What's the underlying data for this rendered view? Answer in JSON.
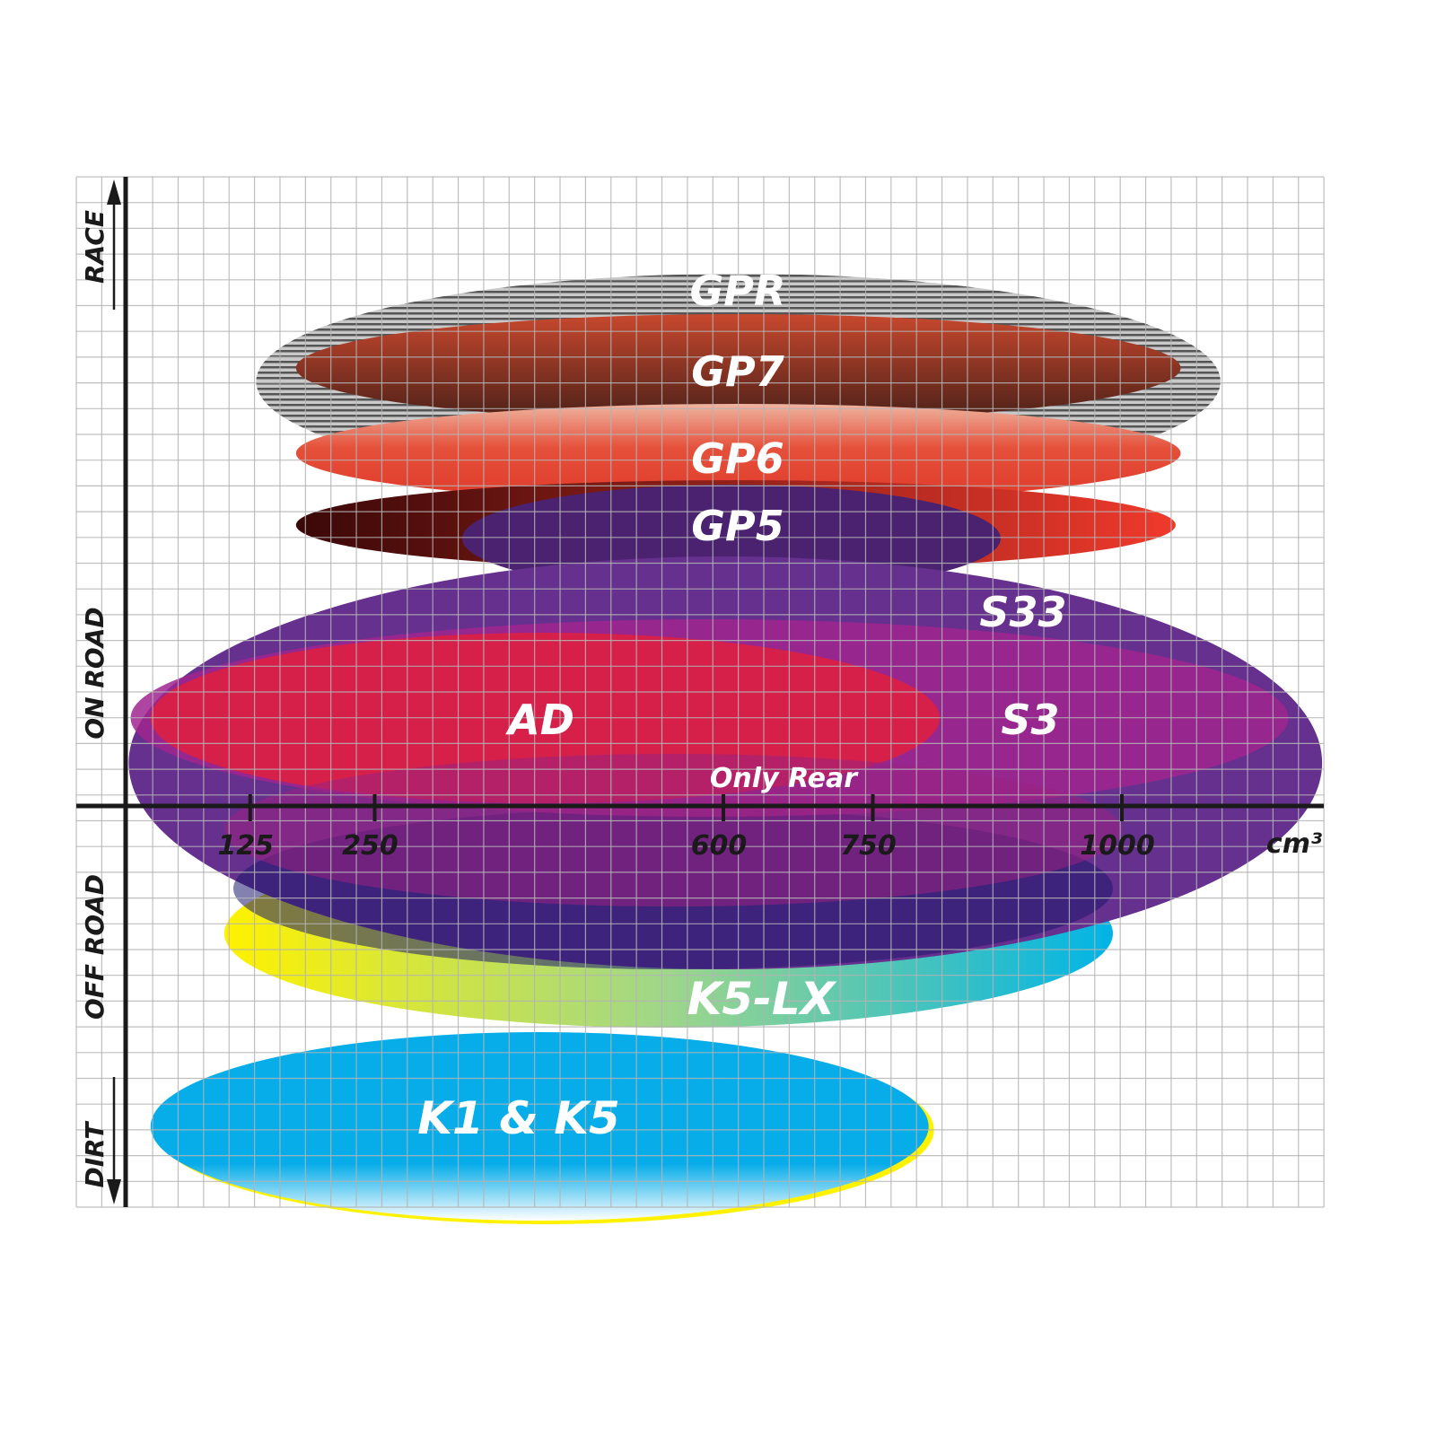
{
  "chart_data": {
    "type": "range-ellipses",
    "xlabel": "cm³",
    "x_ticks": [
      125,
      250,
      600,
      750,
      1000
    ],
    "x_tick_labels": [
      "125",
      "250",
      "600",
      "750",
      "1000"
    ],
    "xlim": [
      0,
      1200
    ],
    "y_categories": [
      "RACE",
      "ON ROAD",
      "OFF ROAD",
      "DIRT"
    ],
    "grid": true,
    "series": [
      {
        "name": "GPR",
        "x_range": [
          131,
          1099
        ],
        "color": "#9a9a9a"
      },
      {
        "name": "GP7",
        "x_range": [
          171,
          1059
        ],
        "color": "#b8442c"
      },
      {
        "name": "GP6",
        "x_range": [
          171,
          1059
        ],
        "color": "#e54030"
      },
      {
        "name": "GP5",
        "x_range": [
          171,
          1054
        ],
        "color": "#e8382c"
      },
      {
        "name": "S33",
        "x_range": [
          3,
          1201
        ],
        "color": "#66308f"
      },
      {
        "name": "S3",
        "x_range": [
          5,
          1167
        ],
        "color": "#a0248f"
      },
      {
        "name": "AD",
        "x_range": [
          25,
          817
        ],
        "color": "#db1f44"
      },
      {
        "name": "Only Rear",
        "x_range": [
          99,
          1000
        ],
        "color": "#9b2382"
      },
      {
        "name": "K5-LX",
        "x_range": [
          99,
          991
        ],
        "color": "#15b8d8"
      },
      {
        "name": "K1 & K5",
        "x_range": [
          25,
          806
        ],
        "color": "#07ade9"
      }
    ]
  }
}
